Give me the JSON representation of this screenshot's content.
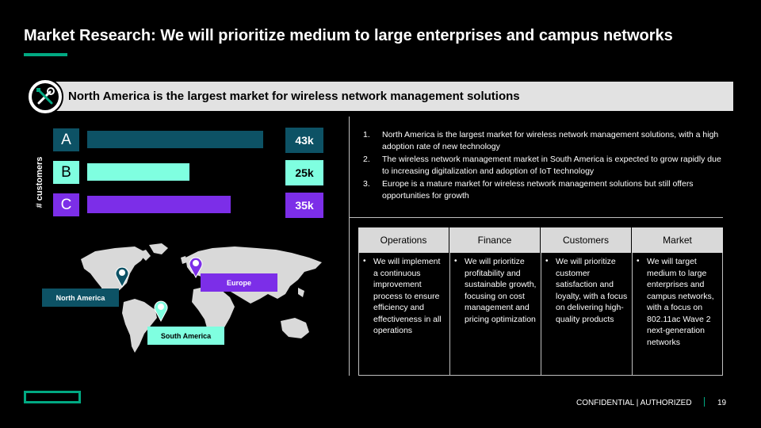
{
  "slide": {
    "title": "Market Research: We will prioritize medium to large enterprises and campus networks",
    "banner": "North America is the largest market for wireless network management solutions",
    "banner_icon": "tools-icon"
  },
  "chart_data": {
    "type": "bar",
    "orientation": "horizontal",
    "ylabel": "# customers",
    "categories": [
      "A",
      "B",
      "C"
    ],
    "values": [
      43,
      25,
      35
    ],
    "value_labels": [
      "43k",
      "25k",
      "35k"
    ],
    "colors": [
      "#0d5265",
      "#7fffe0",
      "#7c2ee8"
    ],
    "xlim": [
      0,
      48
    ]
  },
  "points": [
    {
      "num": "1.",
      "text": "North America is the largest market for wireless network management solutions, with a high adoption rate of new technology"
    },
    {
      "num": "2.",
      "text": "The wireless network management market in South America is expected to grow rapidly due to increasing digitalization and adoption of IoT technology"
    },
    {
      "num": "3.",
      "text": "Europe is a mature market for wireless network management solutions but still offers opportunities for growth"
    }
  ],
  "table": {
    "columns": [
      {
        "header": "Operations",
        "text": "We will implement a continuous improvement process to ensure efficiency and effectiveness in all operations"
      },
      {
        "header": "Finance",
        "text": "We will prioritize profitability and sustainable growth, focusing on cost management and pricing optimization"
      },
      {
        "header": "Customers",
        "text": "We will prioritize customer satisfaction and loyalty, with a focus on delivering high-quality products"
      },
      {
        "header": "Market",
        "text": "We will target medium to large enterprises and campus networks, with a focus on 802.11ac Wave 2 next-generation networks"
      }
    ]
  },
  "map": {
    "labels": [
      {
        "text": "North America",
        "color": "#0d5265"
      },
      {
        "text": "Europe",
        "color": "#7c2ee8"
      },
      {
        "text": "South America",
        "color": "#7fffe0"
      }
    ]
  },
  "footer": {
    "confidential": "CONFIDENTIAL | AUTHORIZED",
    "page": "19"
  }
}
